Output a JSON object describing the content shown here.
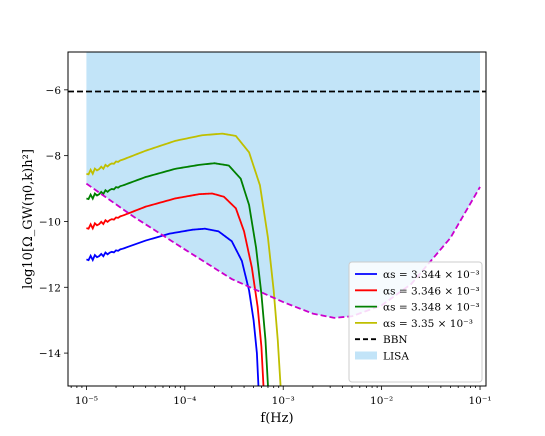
{
  "chart_data": {
    "type": "line",
    "xscale": "log",
    "xlim": [
      6.5e-06,
      0.115
    ],
    "ylim": [
      -15.0,
      -4.85
    ],
    "xlabel": "f(Hz)",
    "ylabel": "log10[Ω_GW(η0,k)h²]",
    "x_tick_values": [
      1e-05,
      0.0001,
      0.001,
      0.01,
      0.1
    ],
    "x_tick_labels": [
      "10⁻⁵",
      "10⁻⁴",
      "10⁻³",
      "10⁻²",
      "10⁻¹"
    ],
    "y_tick_values": [
      -6,
      -8,
      -10,
      -12,
      -14
    ],
    "y_tick_labels": [
      "−6",
      "−8",
      "−10",
      "−12",
      "−14"
    ],
    "legend_position": "lower right",
    "series": [
      {
        "name": "αs = 3.344 × 10⁻³",
        "color": "#0000ff",
        "style": "solid",
        "points": [
          [
            1e-05,
            -11.15
          ],
          [
            2e-05,
            -10.9
          ],
          [
            4e-05,
            -10.58
          ],
          [
            7e-05,
            -10.37
          ],
          [
            0.00012,
            -10.25
          ],
          [
            0.00016,
            -10.22
          ],
          [
            0.00022,
            -10.3
          ],
          [
            0.0003,
            -10.6
          ],
          [
            0.00038,
            -11.2
          ],
          [
            0.00045,
            -12.1
          ],
          [
            0.0005,
            -13.0
          ],
          [
            0.00054,
            -14.0
          ],
          [
            0.00056,
            -15.0
          ]
        ]
      },
      {
        "name": "αs = 3.346 × 10⁻³",
        "color": "#ff0000",
        "style": "solid",
        "points": [
          [
            1e-05,
            -10.2
          ],
          [
            2e-05,
            -9.9
          ],
          [
            4e-05,
            -9.55
          ],
          [
            8e-05,
            -9.3
          ],
          [
            0.00014,
            -9.17
          ],
          [
            0.00019,
            -9.15
          ],
          [
            0.00025,
            -9.25
          ],
          [
            0.00033,
            -9.6
          ],
          [
            0.0004,
            -10.3
          ],
          [
            0.00048,
            -11.4
          ],
          [
            0.00055,
            -12.6
          ],
          [
            0.0006,
            -13.8
          ],
          [
            0.00063,
            -15.0
          ]
        ]
      },
      {
        "name": "αs = 3.348 × 10⁻³",
        "color": "#008000",
        "style": "solid",
        "points": [
          [
            1e-05,
            -9.3
          ],
          [
            2e-05,
            -8.98
          ],
          [
            4e-05,
            -8.65
          ],
          [
            8e-05,
            -8.4
          ],
          [
            0.00014,
            -8.28
          ],
          [
            0.0002,
            -8.23
          ],
          [
            0.00028,
            -8.3
          ],
          [
            0.00037,
            -8.7
          ],
          [
            0.00045,
            -9.5
          ],
          [
            0.00053,
            -10.8
          ],
          [
            0.0006,
            -12.2
          ],
          [
            0.00066,
            -13.6
          ],
          [
            0.0007,
            -15.0
          ]
        ]
      },
      {
        "name": "αs = 3.35 × 10⁻³",
        "color": "#bfbf00",
        "style": "solid",
        "points": [
          [
            1e-05,
            -8.55
          ],
          [
            2e-05,
            -8.2
          ],
          [
            4e-05,
            -7.85
          ],
          [
            8e-05,
            -7.55
          ],
          [
            0.00015,
            -7.38
          ],
          [
            0.00024,
            -7.33
          ],
          [
            0.00033,
            -7.4
          ],
          [
            0.00045,
            -7.9
          ],
          [
            0.00058,
            -8.9
          ],
          [
            0.0007,
            -10.5
          ],
          [
            0.0008,
            -12.1
          ],
          [
            0.00088,
            -13.6
          ],
          [
            0.00094,
            -15.0
          ]
        ]
      },
      {
        "name": "BBN",
        "color": "#000000",
        "style": "dashed",
        "points": [
          [
            6.5e-06,
            -6.05
          ],
          [
            0.115,
            -6.05
          ]
        ]
      },
      {
        "name": "",
        "color": "#cc00cc",
        "style": "dashed",
        "points": [
          [
            1e-05,
            -8.85
          ],
          [
            3e-05,
            -9.85
          ],
          [
            0.0001,
            -10.85
          ],
          [
            0.0003,
            -11.75
          ],
          [
            0.001,
            -12.45
          ],
          [
            0.002,
            -12.8
          ],
          [
            0.0033,
            -12.93
          ],
          [
            0.005,
            -12.88
          ],
          [
            0.01,
            -12.55
          ],
          [
            0.02,
            -11.9
          ],
          [
            0.05,
            -10.5
          ],
          [
            0.1,
            -8.95
          ]
        ]
      }
    ],
    "shaded_region": {
      "name": "LISA",
      "color": "#c2e4f8",
      "x_range": [
        1e-05,
        0.1
      ],
      "top": -4.85,
      "bottom_series_index": 5
    }
  }
}
